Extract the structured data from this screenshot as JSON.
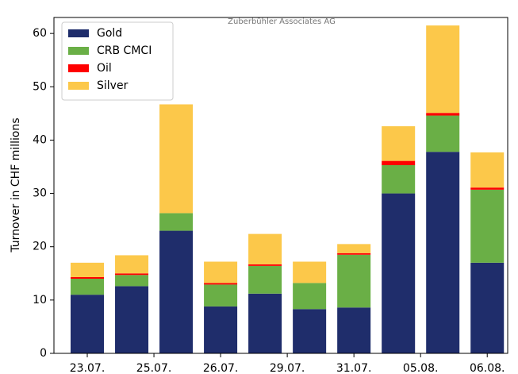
{
  "chart_data": {
    "type": "stacked_bar",
    "annotation": "Zuberbühler Associates AG",
    "ylabel": "Turnover in CHF millions",
    "x": [
      0,
      1,
      2,
      3,
      4,
      5,
      6,
      7,
      8,
      9
    ],
    "xlim": [
      -0.75,
      9.46
    ],
    "xticks": [
      {
        "value": 0,
        "label": "23.07."
      },
      {
        "value": 1.5,
        "label": "25.07."
      },
      {
        "value": 3,
        "label": "26.07."
      },
      {
        "value": 4.5,
        "label": "29.07."
      },
      {
        "value": 6,
        "label": "31.07."
      },
      {
        "value": 7.5,
        "label": "05.08."
      },
      {
        "value": 9,
        "label": "06.08."
      }
    ],
    "ylim": [
      0,
      63
    ],
    "yticks": [
      0,
      10,
      20,
      30,
      40,
      50,
      60
    ],
    "legend": "upper left",
    "series": [
      {
        "name": "Gold",
        "color": "#1f2d6b",
        "values": [
          11,
          12.6,
          23,
          8.8,
          11.2,
          8.3,
          8.6,
          30,
          37.8,
          17
        ]
      },
      {
        "name": "CRB CMCI",
        "color": "#6aaf46",
        "values": [
          3,
          2.1,
          3.3,
          4.1,
          5.2,
          4.9,
          9.9,
          5.3,
          6.8,
          13.7
        ]
      },
      {
        "name": "Oil",
        "color": "#ff0000",
        "values": [
          0.3,
          0.3,
          0,
          0.3,
          0.3,
          0,
          0.3,
          0.8,
          0.5,
          0.4
        ]
      },
      {
        "name": "Silver",
        "color": "#fcc84a",
        "values": [
          2.7,
          3.4,
          20.4,
          4.0,
          5.7,
          4.0,
          1.7,
          6.5,
          16.4,
          6.6
        ]
      }
    ]
  }
}
